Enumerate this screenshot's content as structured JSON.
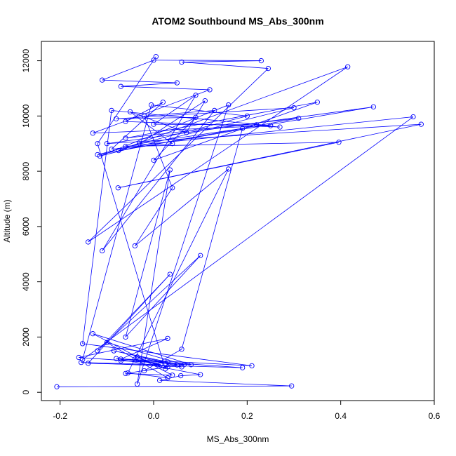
{
  "chart_data": {
    "type": "scatter",
    "mode": "lines+points",
    "title": "ATOM2 Southbound MS_Abs_300nm",
    "xlabel": "MS_Abs_300nm",
    "ylabel": "Altitude (m)",
    "xlim": [
      -0.24,
      0.6
    ],
    "ylim": [
      -300,
      12700
    ],
    "xticks": [
      -0.2,
      0.0,
      0.2,
      0.4,
      0.6
    ],
    "xtick_labels": [
      "-0.2",
      "0.0",
      "0.2",
      "0.4",
      "0.6"
    ],
    "yticks": [
      0,
      2000,
      4000,
      6000,
      8000,
      10000,
      12000
    ],
    "ytick_labels": [
      "0",
      "2000",
      "4000",
      "6000",
      "8000",
      "10000",
      "12000"
    ],
    "grid": false,
    "legend": "none",
    "series_color": "#0000ff",
    "points": [
      {
        "x": -0.207,
        "y": 200
      },
      {
        "x": 0.295,
        "y": 230
      },
      {
        "x": 0.013,
        "y": 430
      },
      {
        "x": 0.058,
        "y": 600
      },
      {
        "x": 0.1,
        "y": 640
      },
      {
        "x": -0.08,
        "y": 1220
      },
      {
        "x": 0.21,
        "y": 960
      },
      {
        "x": -0.152,
        "y": 1760
      },
      {
        "x": -0.09,
        "y": 10200
      },
      {
        "x": 0.25,
        "y": 9650
      },
      {
        "x": -0.13,
        "y": 9380
      },
      {
        "x": 0.12,
        "y": 10950
      },
      {
        "x": -0.07,
        "y": 11070
      },
      {
        "x": 0.05,
        "y": 11200
      },
      {
        "x": -0.11,
        "y": 11300
      },
      {
        "x": 0.0,
        "y": 12020
      },
      {
        "x": 0.23,
        "y": 12000
      },
      {
        "x": 0.06,
        "y": 11950
      },
      {
        "x": 0.245,
        "y": 11720
      },
      {
        "x": -0.14,
        "y": 5440
      },
      {
        "x": 0.415,
        "y": 11780
      },
      {
        "x": -0.075,
        "y": 8750
      },
      {
        "x": 0.47,
        "y": 10330
      },
      {
        "x": -0.1,
        "y": 9000
      },
      {
        "x": 0.572,
        "y": 9700
      },
      {
        "x": -0.076,
        "y": 7400
      },
      {
        "x": 0.396,
        "y": 9050
      },
      {
        "x": -0.06,
        "y": 8900
      },
      {
        "x": 0.555,
        "y": 9970
      },
      {
        "x": -0.152,
        "y": 1180
      },
      {
        "x": -0.005,
        "y": 10400
      },
      {
        "x": 0.2,
        "y": 10000
      },
      {
        "x": -0.12,
        "y": 8600
      },
      {
        "x": 0.31,
        "y": 9920
      },
      {
        "x": -0.06,
        "y": 9200
      },
      {
        "x": 0.35,
        "y": 10500
      },
      {
        "x": 0.0,
        "y": 8400
      },
      {
        "x": 0.09,
        "y": 9950
      },
      {
        "x": -0.08,
        "y": 9900
      },
      {
        "x": 0.3,
        "y": 10300
      },
      {
        "x": -0.115,
        "y": 8550
      },
      {
        "x": 0.16,
        "y": 10400
      },
      {
        "x": -0.035,
        "y": 300
      },
      {
        "x": 0.035,
        "y": 8050
      },
      {
        "x": -0.06,
        "y": 2000
      },
      {
        "x": 0.1,
        "y": 4950
      },
      {
        "x": -0.12,
        "y": 1500
      },
      {
        "x": 0.035,
        "y": 4270
      },
      {
        "x": -0.14,
        "y": 1050
      },
      {
        "x": 0.19,
        "y": 890
      },
      {
        "x": -0.07,
        "y": 1200
      },
      {
        "x": 0.03,
        "y": 1950
      },
      {
        "x": -0.16,
        "y": 1260
      },
      {
        "x": 0.065,
        "y": 1000
      },
      {
        "x": -0.1,
        "y": 1800
      },
      {
        "x": 0.03,
        "y": 520
      },
      {
        "x": -0.055,
        "y": 700
      },
      {
        "x": 0.16,
        "y": 8080
      },
      {
        "x": -0.04,
        "y": 5300
      },
      {
        "x": 0.04,
        "y": 7400
      },
      {
        "x": -0.02,
        "y": 10000
      },
      {
        "x": 0.13,
        "y": 10200
      },
      {
        "x": -0.11,
        "y": 5120
      },
      {
        "x": 0.09,
        "y": 10750
      },
      {
        "x": 0.0,
        "y": 9700
      },
      {
        "x": 0.22,
        "y": 9680
      },
      {
        "x": 0.27,
        "y": 9600
      },
      {
        "x": -0.06,
        "y": 9800
      },
      {
        "x": 0.02,
        "y": 10500
      },
      {
        "x": -0.09,
        "y": 8800
      },
      {
        "x": 0.04,
        "y": 9000
      },
      {
        "x": -0.05,
        "y": 10150
      },
      {
        "x": 0.07,
        "y": 9400
      },
      {
        "x": 0.11,
        "y": 10550
      },
      {
        "x": -0.03,
        "y": 9000
      },
      {
        "x": 0.19,
        "y": 9550
      },
      {
        "x": 0.06,
        "y": 1560
      },
      {
        "x": -0.02,
        "y": 780
      },
      {
        "x": 0.05,
        "y": 990
      },
      {
        "x": -0.085,
        "y": 1500
      },
      {
        "x": 0.03,
        "y": 1100
      },
      {
        "x": -0.07,
        "y": 1140
      },
      {
        "x": 0.08,
        "y": 1000
      },
      {
        "x": -0.13,
        "y": 2120
      },
      {
        "x": 0.04,
        "y": 620
      },
      {
        "x": -0.06,
        "y": 680
      },
      {
        "x": 0.03,
        "y": 920
      },
      {
        "x": -0.04,
        "y": 1200
      },
      {
        "x": 0.015,
        "y": 1000
      },
      {
        "x": -0.155,
        "y": 1080
      },
      {
        "x": 0.06,
        "y": 920
      },
      {
        "x": -0.035,
        "y": 1280
      },
      {
        "x": 0.025,
        "y": 850
      },
      {
        "x": -0.12,
        "y": 9000
      },
      {
        "x": 0.005,
        "y": 12150
      }
    ]
  }
}
